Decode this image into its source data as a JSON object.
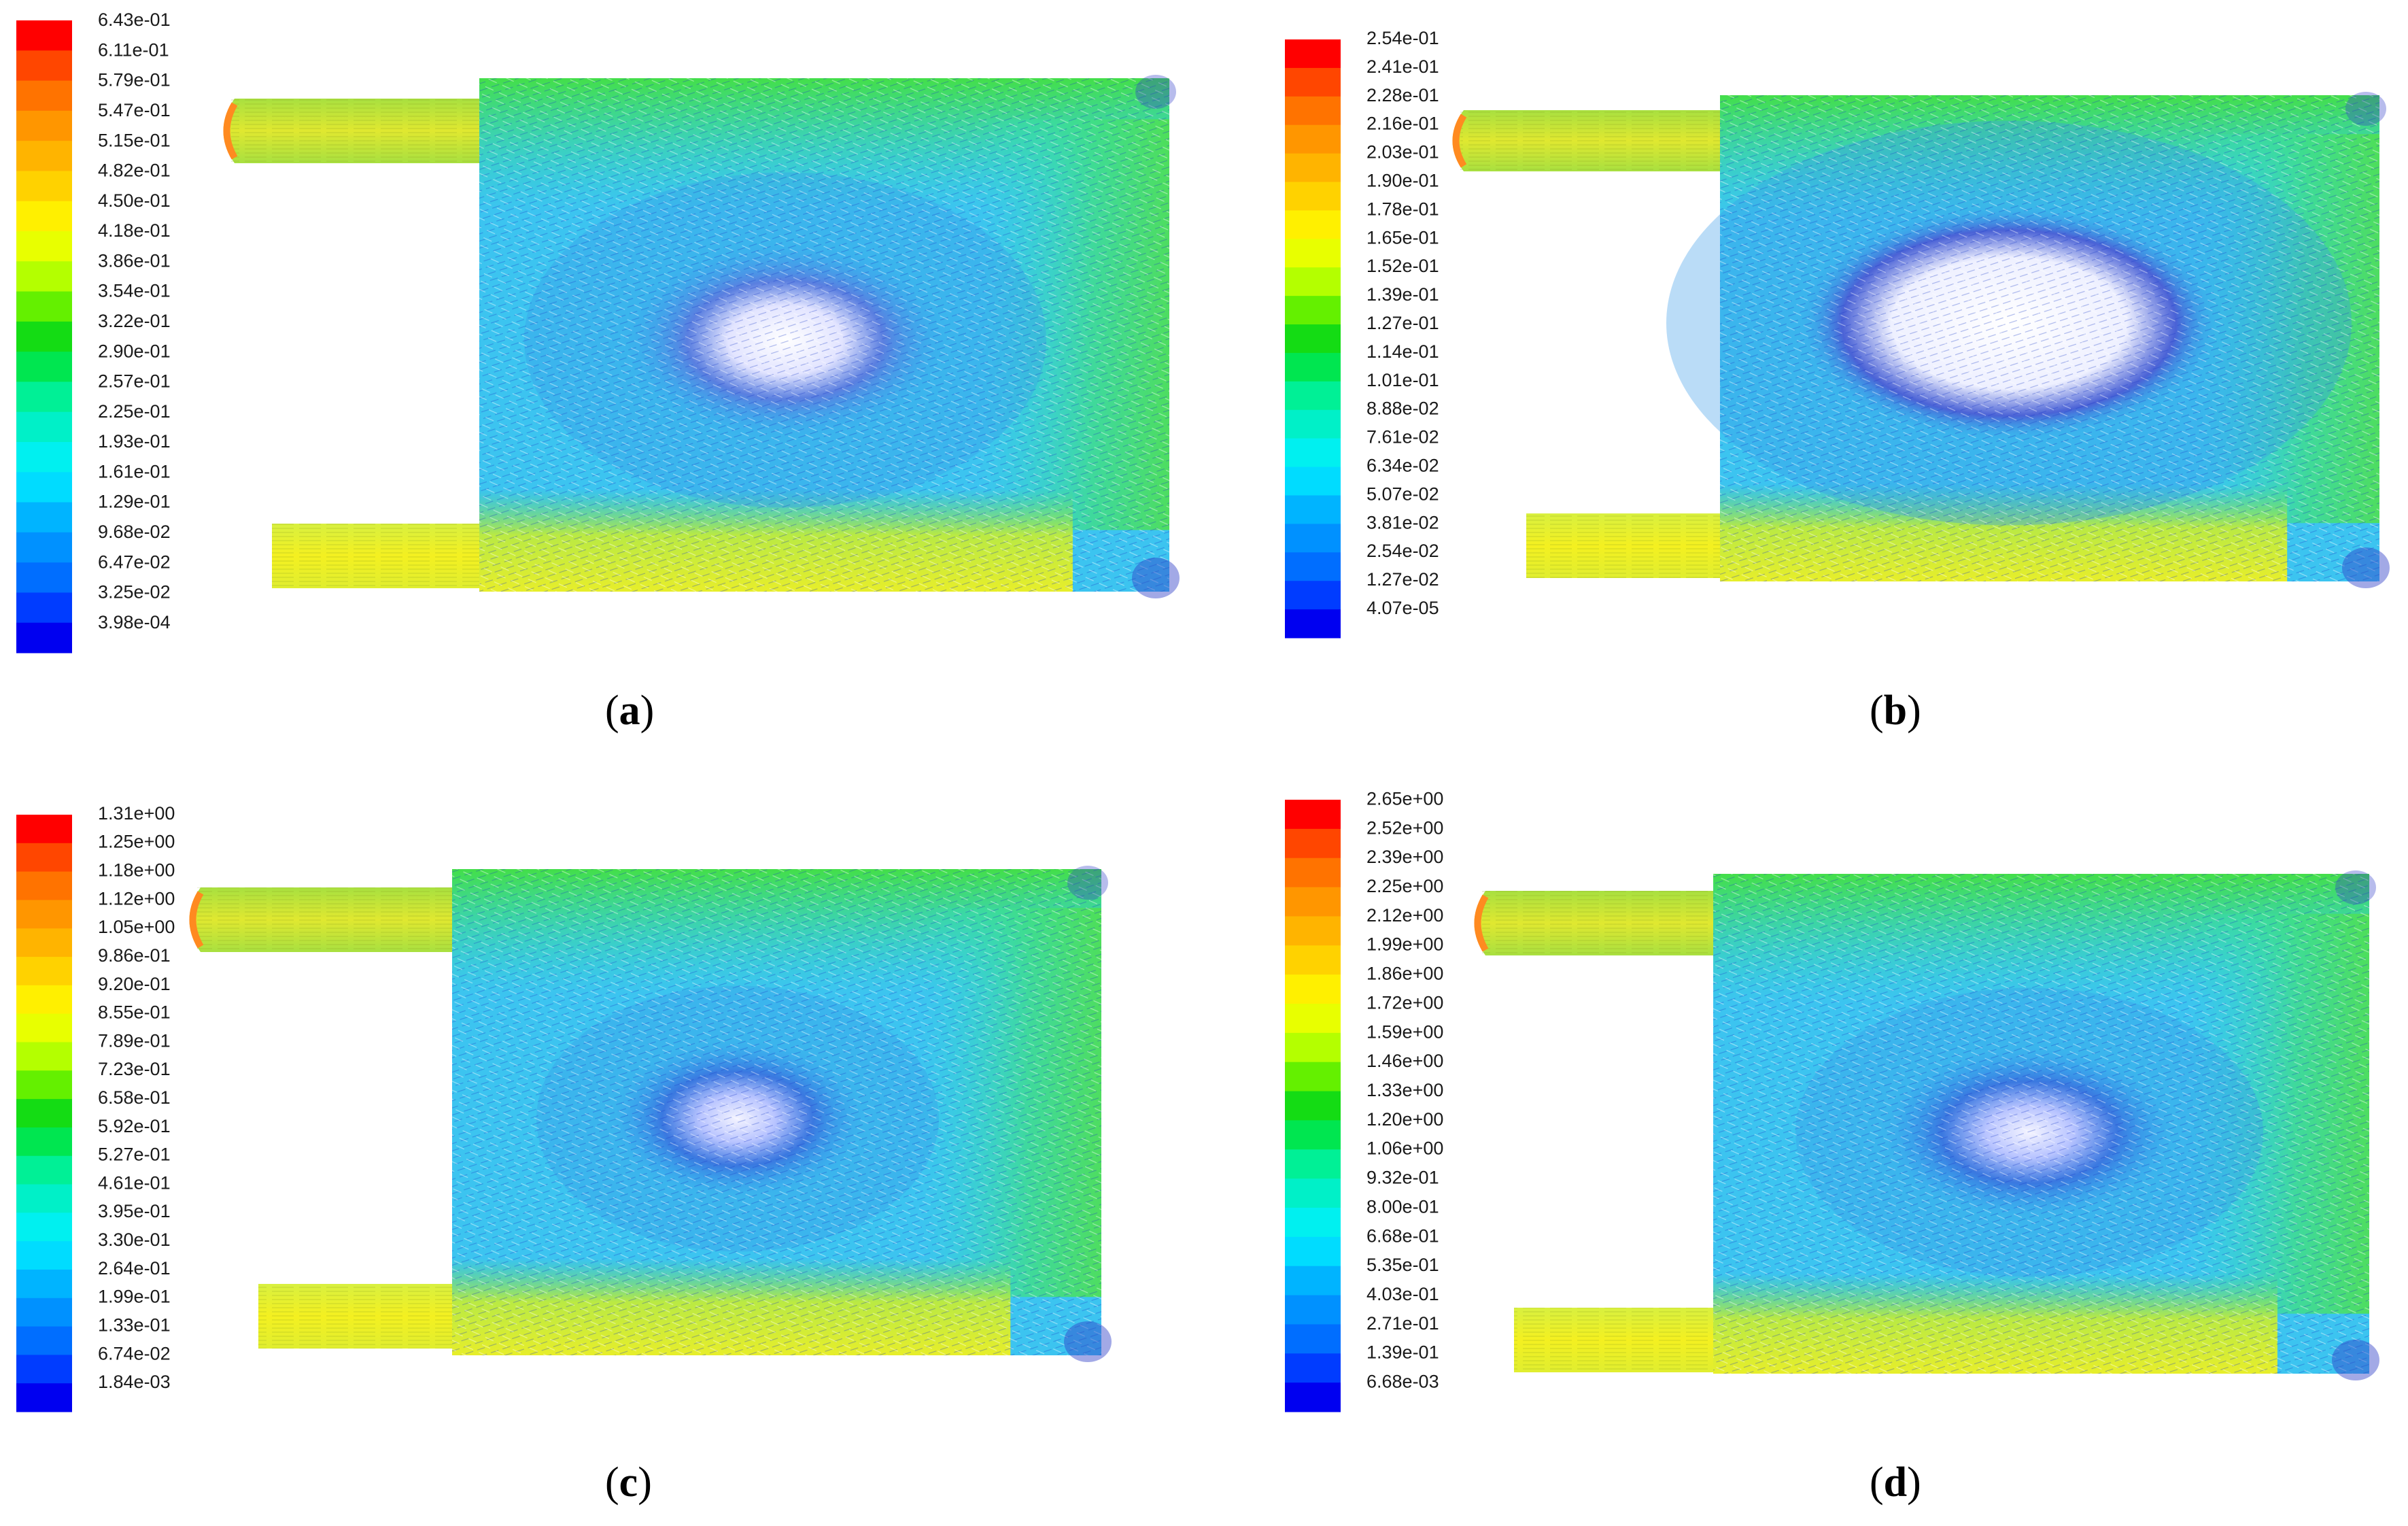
{
  "panels": [
    {
      "id": "a",
      "label": "a",
      "caption_open": "(",
      "caption_close": ")",
      "scale": [
        "6.43e-01",
        "6.11e-01",
        "5.79e-01",
        "5.47e-01",
        "5.15e-01",
        "4.82e-01",
        "4.50e-01",
        "4.18e-01",
        "3.86e-01",
        "3.54e-01",
        "3.22e-01",
        "2.90e-01",
        "2.57e-01",
        "2.25e-01",
        "1.93e-01",
        "1.61e-01",
        "1.29e-01",
        "9.68e-02",
        "6.47e-02",
        "3.25e-02",
        "3.98e-04"
      ]
    },
    {
      "id": "b",
      "label": "b",
      "caption_open": "(",
      "caption_close": ")",
      "scale": [
        "2.54e-01",
        "2.41e-01",
        "2.28e-01",
        "2.16e-01",
        "2.03e-01",
        "1.90e-01",
        "1.78e-01",
        "1.65e-01",
        "1.52e-01",
        "1.39e-01",
        "1.27e-01",
        "1.14e-01",
        "1.01e-01",
        "8.88e-02",
        "7.61e-02",
        "6.34e-02",
        "5.07e-02",
        "3.81e-02",
        "2.54e-02",
        "1.27e-02",
        "4.07e-05"
      ]
    },
    {
      "id": "c",
      "label": "c",
      "caption_open": "(",
      "caption_close": ")",
      "scale": [
        "1.31e+00",
        "1.25e+00",
        "1.18e+00",
        "1.12e+00",
        "1.05e+00",
        "9.86e-01",
        "9.20e-01",
        "8.55e-01",
        "7.89e-01",
        "7.23e-01",
        "6.58e-01",
        "5.92e-01",
        "5.27e-01",
        "4.61e-01",
        "3.95e-01",
        "3.30e-01",
        "2.64e-01",
        "1.99e-01",
        "1.33e-01",
        "6.74e-02",
        "1.84e-03"
      ]
    },
    {
      "id": "d",
      "label": "d",
      "caption_open": "(",
      "caption_close": ")",
      "scale": [
        "2.65e+00",
        "2.52e+00",
        "2.39e+00",
        "2.25e+00",
        "2.12e+00",
        "1.99e+00",
        "1.86e+00",
        "1.72e+00",
        "1.59e+00",
        "1.46e+00",
        "1.33e+00",
        "1.20e+00",
        "1.06e+00",
        "9.32e-01",
        "8.00e-01",
        "6.68e-01",
        "5.35e-01",
        "4.03e-01",
        "2.71e-01",
        "1.39e-01",
        "6.68e-03"
      ]
    }
  ],
  "colormap": [
    "#ff0000",
    "#ff4600",
    "#ff7300",
    "#ff9600",
    "#ffb400",
    "#ffd200",
    "#fff000",
    "#e8ff00",
    "#b4ff00",
    "#64f000",
    "#14dc14",
    "#00e650",
    "#00f096",
    "#00f0c8",
    "#00f0f0",
    "#00dcff",
    "#00b4ff",
    "#0091ff",
    "#006eff",
    "#003cff",
    "#0000f0"
  ]
}
